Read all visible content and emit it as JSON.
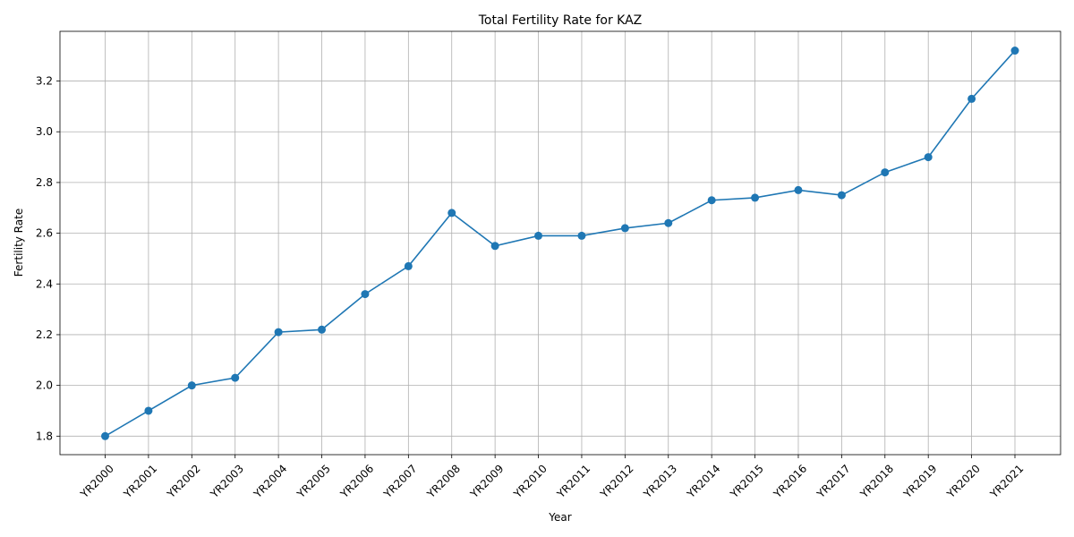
{
  "chart_data": {
    "type": "line",
    "title": "Total Fertility Rate for KAZ",
    "xlabel": "Year",
    "ylabel": "Fertility Rate",
    "categories": [
      "YR2000",
      "YR2001",
      "YR2002",
      "YR2003",
      "YR2004",
      "YR2005",
      "YR2006",
      "YR2007",
      "YR2008",
      "YR2009",
      "YR2010",
      "YR2011",
      "YR2012",
      "YR2013",
      "YR2014",
      "YR2015",
      "YR2016",
      "YR2017",
      "YR2018",
      "YR2019",
      "YR2020",
      "YR2021"
    ],
    "series": [
      {
        "values": [
          1.8,
          1.9,
          2.0,
          2.03,
          2.21,
          2.22,
          2.36,
          2.47,
          2.68,
          2.55,
          2.59,
          2.59,
          2.62,
          2.64,
          2.73,
          2.74,
          2.77,
          2.75,
          2.84,
          2.9,
          3.13,
          3.32
        ],
        "color": "#1f77b4"
      }
    ],
    "ylim": [
      1.727,
      3.396
    ],
    "yticks": [
      "1.8",
      "2.0",
      "2.2",
      "2.4",
      "2.6",
      "2.8",
      "3.0",
      "3.2"
    ],
    "grid": true,
    "marker": "circle"
  }
}
